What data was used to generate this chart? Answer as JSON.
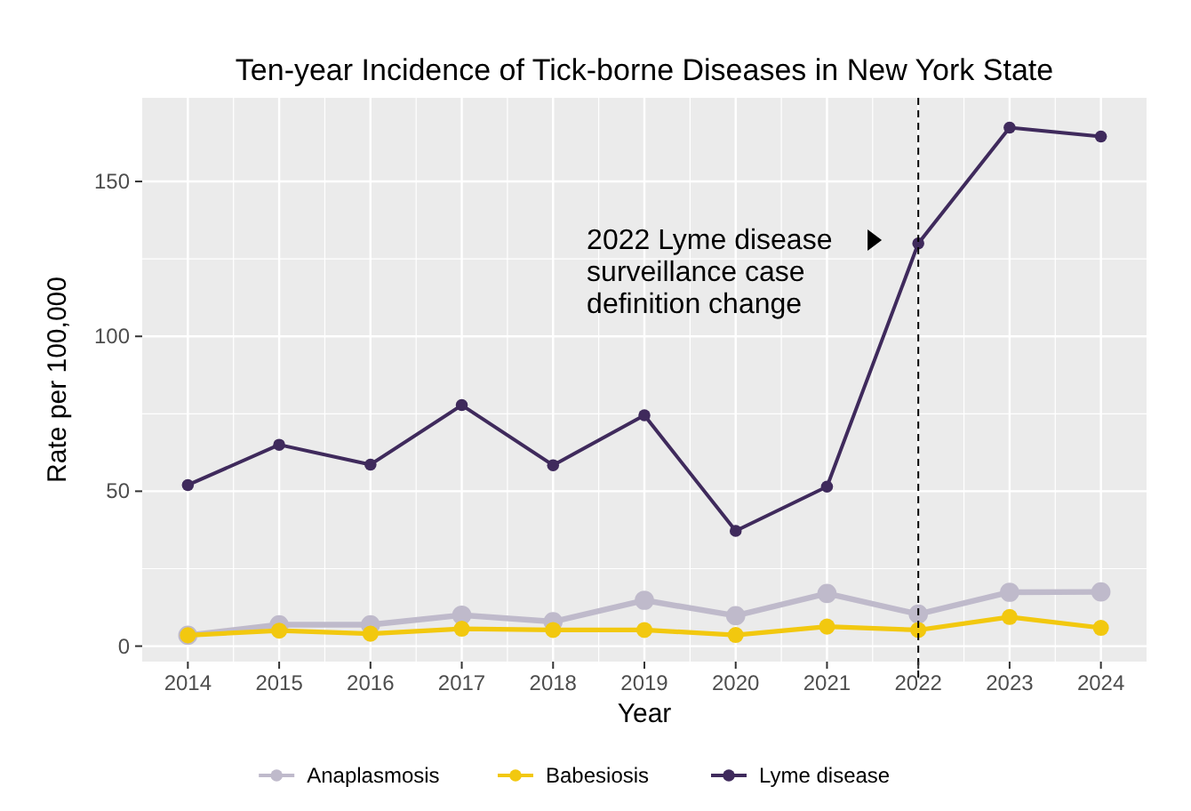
{
  "chart_data": {
    "type": "line",
    "title": "Ten-year Incidence of Tick-borne Diseases in New York State",
    "xlabel": "Year",
    "ylabel": "Rate per 100,000",
    "x": [
      2014,
      2015,
      2016,
      2017,
      2018,
      2019,
      2020,
      2021,
      2022,
      2023,
      2024
    ],
    "series": [
      {
        "name": "Anaplasmosis",
        "color": "#bfbacb",
        "values": [
          3.5,
          6.9,
          6.9,
          10,
          7.9,
          14.8,
          9.8,
          17,
          10.3,
          17.4,
          17.5
        ]
      },
      {
        "name": "Babesiosis",
        "color": "#f2c80f",
        "values": [
          3.5,
          5,
          4,
          5.6,
          5.2,
          5.2,
          3.6,
          6.3,
          5.2,
          9.4,
          5.9
        ]
      },
      {
        "name": "Lyme disease",
        "color": "#3f2a5c",
        "values": [
          52,
          65,
          58.6,
          77.8,
          58.4,
          74.5,
          37.2,
          51.5,
          130,
          167.4,
          164.5
        ]
      }
    ],
    "xlim": [
      2013.5,
      2024.5
    ],
    "xticks": [
      2014,
      2015,
      2016,
      2017,
      2018,
      2019,
      2020,
      2021,
      2022,
      2023,
      2024
    ],
    "ylim": [
      -5,
      177
    ],
    "yticks": [
      0,
      50,
      100,
      150
    ],
    "ref_lines": [
      {
        "axis": "x",
        "value": 2022,
        "color": "#000000",
        "line_style": "dashed"
      }
    ],
    "annotations": [
      "2022 Lyme disease\nsurveillance case\ndefinition change"
    ],
    "grid": true,
    "legend": "bottom",
    "marker": "circle",
    "line_style": "solid"
  }
}
